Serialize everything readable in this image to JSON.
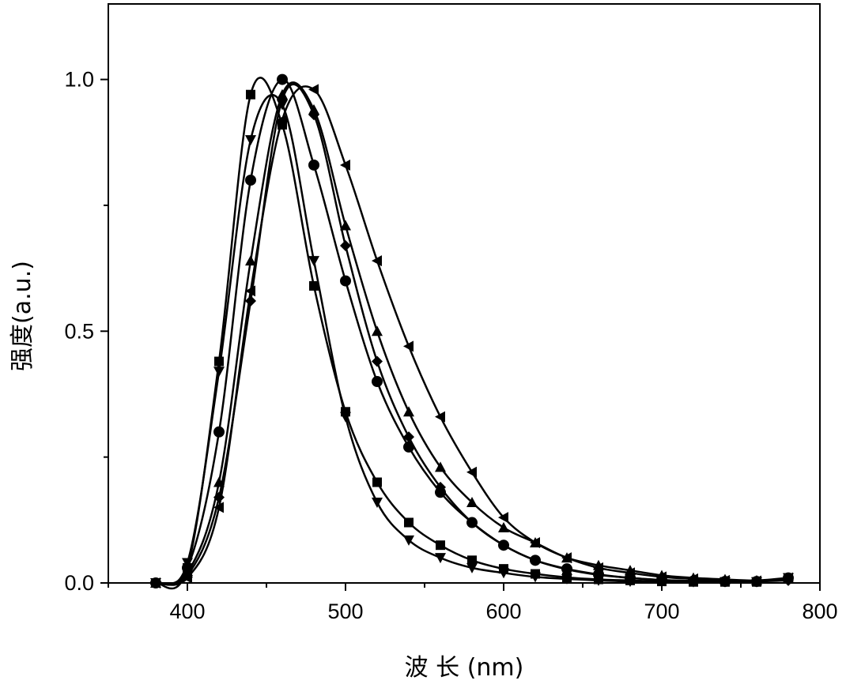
{
  "chart_data": {
    "type": "line",
    "xlabel": "波 长 (nm)",
    "ylabel": "强度(a.u.)",
    "xlim": [
      350,
      800
    ],
    "ylim": [
      0.0,
      1.15
    ],
    "x_ticks": [
      "400",
      "500",
      "600",
      "700",
      "800"
    ],
    "y_ticks": [
      "0.0",
      "0.5",
      "1.0"
    ],
    "grid": false,
    "legend": "none",
    "line_color": "#000000",
    "series": [
      {
        "marker": "square",
        "x": [
          380,
          400,
          420,
          440,
          460,
          480,
          500,
          520,
          540,
          560,
          580,
          600,
          620,
          640,
          660,
          680,
          700,
          720,
          740,
          760,
          780
        ],
        "y": [
          0.0,
          0.03,
          0.44,
          0.97,
          0.91,
          0.59,
          0.34,
          0.2,
          0.12,
          0.075,
          0.045,
          0.028,
          0.018,
          0.011,
          0.007,
          0.005,
          0.003,
          0.002,
          0.002,
          0.002,
          0.01
        ]
      },
      {
        "marker": "triangle-down",
        "x": [
          380,
          400,
          420,
          440,
          460,
          480,
          500,
          520,
          540,
          560,
          580,
          600,
          620,
          640,
          660,
          680,
          700,
          720,
          740,
          760,
          780
        ],
        "y": [
          0.0,
          0.04,
          0.42,
          0.88,
          0.95,
          0.64,
          0.33,
          0.16,
          0.085,
          0.05,
          0.03,
          0.02,
          0.012,
          0.008,
          0.005,
          0.003,
          0.002,
          0.002,
          0.002,
          0.002,
          0.01
        ]
      },
      {
        "marker": "circle",
        "x": [
          380,
          400,
          420,
          440,
          460,
          480,
          500,
          520,
          540,
          560,
          580,
          600,
          620,
          640,
          660,
          680,
          700,
          720,
          740,
          760,
          780
        ],
        "y": [
          0.0,
          0.03,
          0.3,
          0.8,
          1.0,
          0.83,
          0.6,
          0.4,
          0.27,
          0.18,
          0.12,
          0.075,
          0.045,
          0.028,
          0.017,
          0.01,
          0.006,
          0.004,
          0.003,
          0.003,
          0.01
        ]
      },
      {
        "marker": "triangle-up",
        "x": [
          380,
          400,
          420,
          440,
          460,
          480,
          500,
          520,
          540,
          560,
          580,
          600,
          620,
          640,
          660,
          680,
          700,
          720,
          740,
          760,
          780
        ],
        "y": [
          0.0,
          0.02,
          0.2,
          0.64,
          0.97,
          0.94,
          0.71,
          0.5,
          0.34,
          0.23,
          0.16,
          0.11,
          0.08,
          0.05,
          0.035,
          0.025,
          0.015,
          0.01,
          0.007,
          0.005,
          0.01
        ]
      },
      {
        "marker": "diamond",
        "x": [
          380,
          400,
          420,
          440,
          460,
          480,
          500,
          520,
          540,
          560,
          580,
          600,
          620,
          640,
          660,
          680,
          700,
          720,
          740,
          760,
          780
        ],
        "y": [
          0.0,
          0.015,
          0.17,
          0.56,
          0.96,
          0.93,
          0.67,
          0.44,
          0.29,
          0.19,
          0.12,
          0.075,
          0.045,
          0.027,
          0.016,
          0.01,
          0.006,
          0.004,
          0.003,
          0.003,
          0.005
        ]
      },
      {
        "marker": "triangle-left",
        "x": [
          380,
          400,
          420,
          440,
          460,
          480,
          500,
          520,
          540,
          560,
          580,
          600,
          620,
          640,
          660,
          680,
          700,
          720,
          740,
          760,
          780
        ],
        "y": [
          0.0,
          0.01,
          0.15,
          0.58,
          0.92,
          0.98,
          0.83,
          0.64,
          0.47,
          0.33,
          0.22,
          0.13,
          0.08,
          0.05,
          0.03,
          0.02,
          0.012,
          0.008,
          0.005,
          0.004,
          0.01
        ]
      }
    ]
  }
}
